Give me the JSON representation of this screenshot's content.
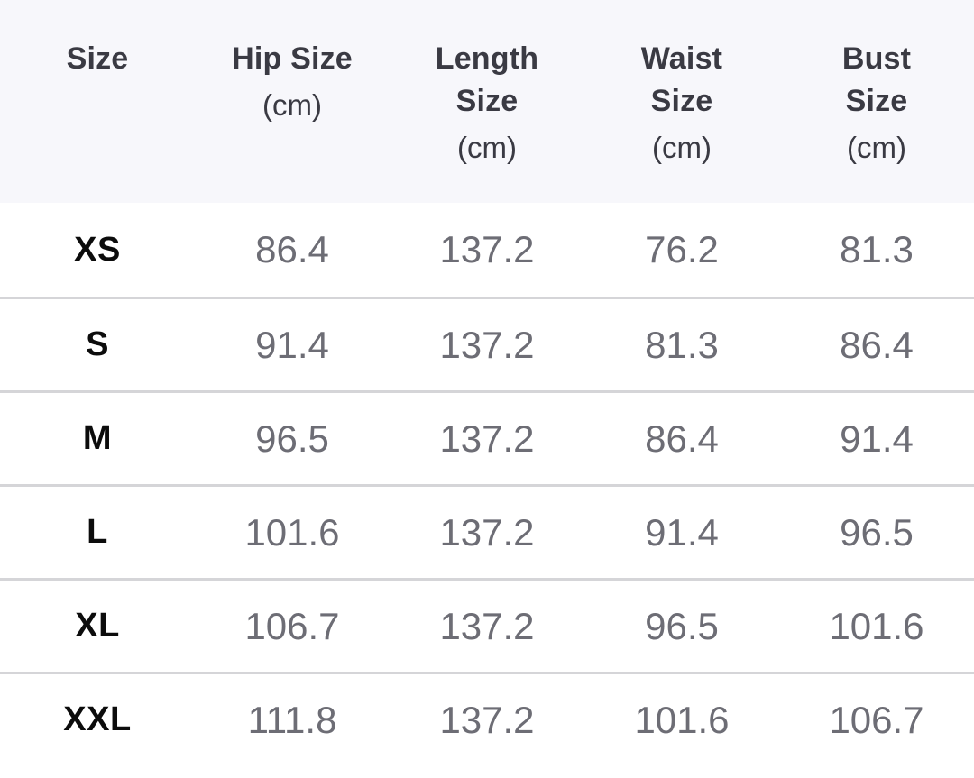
{
  "size_chart": {
    "columns": [
      {
        "label": "Size",
        "unit": ""
      },
      {
        "label": "Hip Size",
        "unit": "(cm)"
      },
      {
        "label": "Length Size",
        "unit": "(cm)"
      },
      {
        "label": "Waist Size",
        "unit": "(cm)"
      },
      {
        "label": "Bust Size",
        "unit": "(cm)"
      }
    ],
    "rows": [
      {
        "size": "XS",
        "hip": "86.4",
        "length": "137.2",
        "waist": "76.2",
        "bust": "81.3"
      },
      {
        "size": "S",
        "hip": "91.4",
        "length": "137.2",
        "waist": "81.3",
        "bust": "86.4"
      },
      {
        "size": "M",
        "hip": "96.5",
        "length": "137.2",
        "waist": "86.4",
        "bust": "91.4"
      },
      {
        "size": "L",
        "hip": "101.6",
        "length": "137.2",
        "waist": "91.4",
        "bust": "96.5"
      },
      {
        "size": "XL",
        "hip": "106.7",
        "length": "137.2",
        "waist": "96.5",
        "bust": "101.6"
      },
      {
        "size": "XXL",
        "hip": "111.8",
        "length": "137.2",
        "waist": "101.6",
        "bust": "106.7"
      }
    ],
    "colors": {
      "header_bg": "#f7f7fb",
      "header_text": "#3a3a43",
      "size_text": "#0c0c0c",
      "value_text": "#6d6d75",
      "divider": "#d5d5d8",
      "row_bg": "#ffffff"
    }
  }
}
